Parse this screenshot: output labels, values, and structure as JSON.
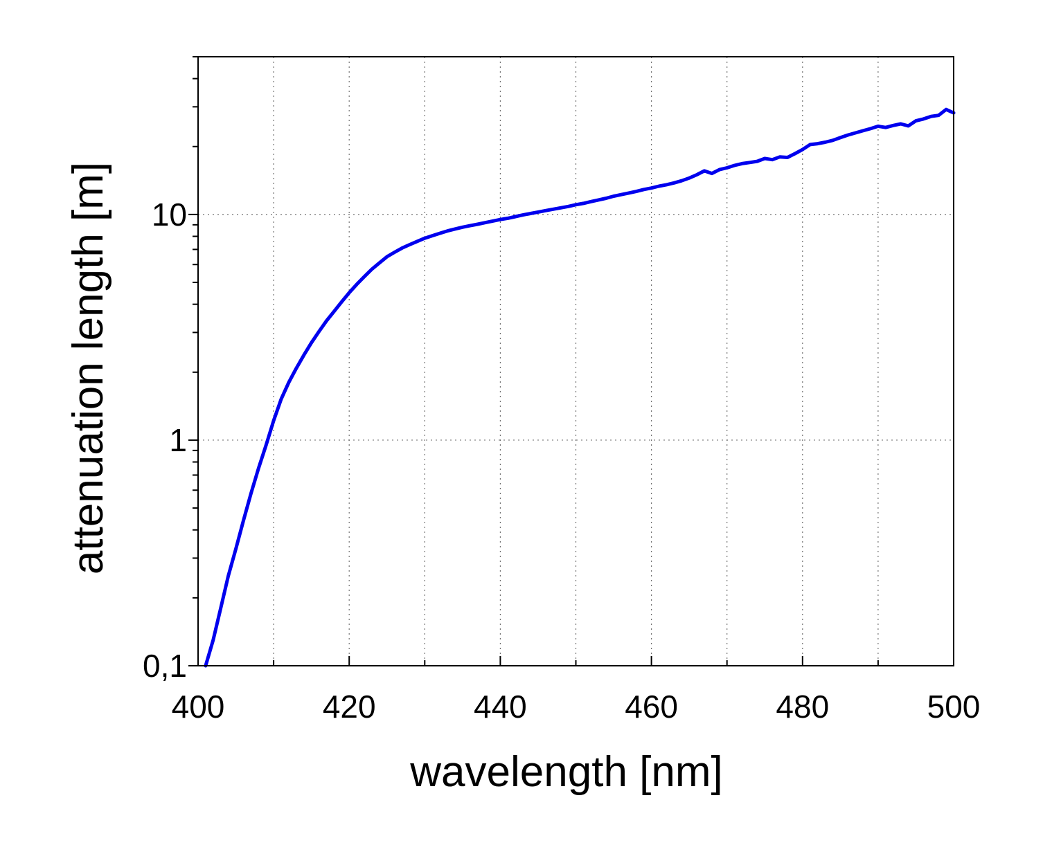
{
  "chart_data": {
    "type": "line",
    "title": "",
    "xlabel": "wavelength [nm]",
    "ylabel": "attenuation length [m]",
    "xscale": "linear",
    "yscale": "log",
    "xlim": [
      400,
      500
    ],
    "ylim": [
      0.1,
      50
    ],
    "grid": true,
    "x_ticks": [
      400,
      420,
      440,
      460,
      480,
      500
    ],
    "x_tick_labels": [
      "400",
      "420",
      "440",
      "460",
      "480",
      "500"
    ],
    "x_minor_ticks": [
      410,
      430,
      450,
      470,
      490
    ],
    "y_ticks": [
      0.1,
      1,
      10
    ],
    "y_tick_labels": [
      "0,1",
      "1",
      "10"
    ],
    "series": [
      {
        "name": "attenuation length",
        "color": "#0000ee",
        "x": [
          401,
          402,
          403,
          404,
          405,
          406,
          407,
          408,
          409,
          410,
          411,
          412,
          413,
          414,
          415,
          416,
          417,
          418,
          419,
          420,
          421,
          422,
          423,
          424,
          425,
          426,
          427,
          428,
          429,
          430,
          431,
          432,
          433,
          434,
          435,
          436,
          437,
          438,
          439,
          440,
          441,
          442,
          443,
          444,
          445,
          446,
          447,
          448,
          449,
          450,
          451,
          452,
          453,
          454,
          455,
          456,
          457,
          458,
          459,
          460,
          461,
          462,
          463,
          464,
          465,
          466,
          467,
          468,
          469,
          470,
          471,
          472,
          473,
          474,
          475,
          476,
          477,
          478,
          479,
          480,
          481,
          482,
          483,
          484,
          485,
          486,
          487,
          488,
          489,
          490,
          491,
          492,
          493,
          494,
          495,
          496,
          497,
          498,
          499,
          500
        ],
        "y": [
          0.1,
          0.13,
          0.18,
          0.25,
          0.33,
          0.44,
          0.58,
          0.75,
          0.95,
          1.22,
          1.52,
          1.8,
          2.08,
          2.38,
          2.7,
          3.03,
          3.38,
          3.72,
          4.1,
          4.5,
          4.9,
          5.3,
          5.72,
          6.1,
          6.5,
          6.8,
          7.1,
          7.35,
          7.6,
          7.85,
          8.05,
          8.25,
          8.45,
          8.62,
          8.78,
          8.92,
          9.05,
          9.2,
          9.35,
          9.5,
          9.62,
          9.78,
          9.95,
          10.1,
          10.25,
          10.4,
          10.55,
          10.7,
          10.85,
          11.05,
          11.2,
          11.4,
          11.6,
          11.8,
          12.05,
          12.25,
          12.45,
          12.65,
          12.9,
          13.1,
          13.35,
          13.55,
          13.8,
          14.1,
          14.5,
          15.0,
          15.6,
          15.2,
          15.8,
          16.1,
          16.5,
          16.8,
          17.0,
          17.2,
          17.7,
          17.5,
          18.0,
          17.9,
          18.6,
          19.4,
          20.4,
          20.6,
          20.9,
          21.3,
          21.9,
          22.5,
          23.0,
          23.5,
          24.0,
          24.6,
          24.3,
          24.8,
          25.2,
          24.7,
          26.0,
          26.5,
          27.2,
          27.5,
          29.2,
          28.2
        ]
      }
    ]
  }
}
